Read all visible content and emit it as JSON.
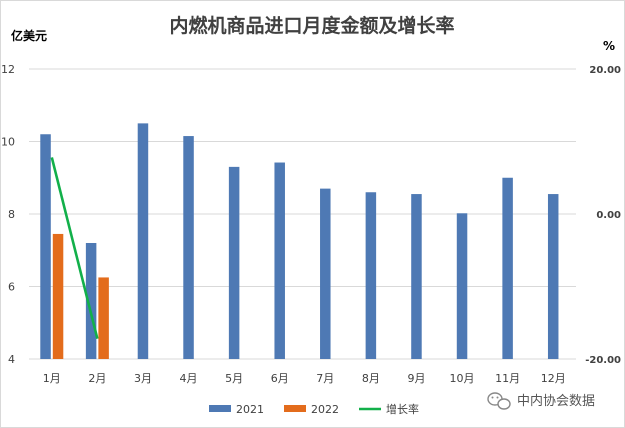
{
  "chart_data": {
    "type": "bar",
    "title": "内燃机商品进口月度金额及增长率",
    "ylabel_left": "亿美元",
    "ylabel_right": "%",
    "categories": [
      "1月",
      "2月",
      "3月",
      "4月",
      "5月",
      "6月",
      "7月",
      "8月",
      "9月",
      "10月",
      "11月",
      "12月"
    ],
    "ylim_left": [
      4,
      12
    ],
    "yticks_left": [
      "4",
      "6",
      "8",
      "10",
      "12"
    ],
    "ylim_right": [
      -20,
      20
    ],
    "yticks_right": [
      "-20.00",
      "0.00",
      "20.00"
    ],
    "series": [
      {
        "name": "2021",
        "type": "bar",
        "axis": "left",
        "color": "#4e79b4",
        "values": [
          10.2,
          7.2,
          10.5,
          10.15,
          9.3,
          9.42,
          8.7,
          8.6,
          8.55,
          8.02,
          9.0,
          8.55
        ]
      },
      {
        "name": "2022",
        "type": "bar",
        "axis": "left",
        "color": "#e36c1c",
        "values": [
          7.45,
          6.25,
          null,
          null,
          null,
          null,
          null,
          null,
          null,
          null,
          null,
          null
        ]
      },
      {
        "name": "增长率",
        "type": "line",
        "axis": "right",
        "color": "#12b04a",
        "values": [
          7.8,
          -17.2,
          null,
          null,
          null,
          null,
          null,
          null,
          null,
          null,
          null,
          null
        ]
      }
    ],
    "grid": true,
    "legend": "bottom"
  },
  "watermark": {
    "icon": "wechat-icon",
    "text": "中内协会数据"
  }
}
